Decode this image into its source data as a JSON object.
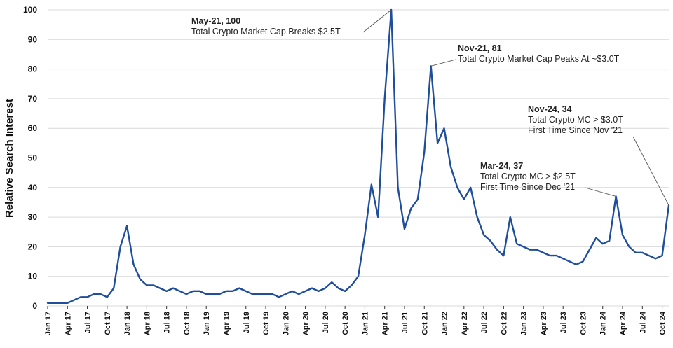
{
  "chart_data": {
    "type": "line",
    "title": "",
    "xlabel": "",
    "ylabel": "Relative Search Interest",
    "ylim": [
      0,
      100
    ],
    "yticks": [
      0,
      10,
      20,
      30,
      40,
      50,
      60,
      70,
      80,
      90,
      100
    ],
    "grid": "horizontal",
    "series_color": "#1f4e9c",
    "x_tick_labels": [
      "Jan 17",
      "Apr 17",
      "Jul 17",
      "Oct 17",
      "Jan 18",
      "Apr 18",
      "Jul 18",
      "Oct 18",
      "Jan 19",
      "Apr 19",
      "Jul 19",
      "Oct 19",
      "Jan 20",
      "Apr 20",
      "Jul 20",
      "Oct 20",
      "Jan 21",
      "Apr 21",
      "Jul 21",
      "Oct 21",
      "Jan 22",
      "Apr 22",
      "Jul 22",
      "Oct 22",
      "Jan 23",
      "Apr 23",
      "Jul 23",
      "Oct 23",
      "Jan 24",
      "Apr 24",
      "Jul 24",
      "Oct 24"
    ],
    "series": [
      {
        "x_start": "Jan 17",
        "frequency": "monthly",
        "values": [
          1,
          1,
          1,
          1,
          2,
          3,
          3,
          4,
          4,
          3,
          6,
          20,
          27,
          14,
          9,
          7,
          7,
          6,
          5,
          6,
          5,
          4,
          5,
          5,
          4,
          4,
          4,
          5,
          5,
          6,
          5,
          4,
          4,
          4,
          4,
          3,
          4,
          5,
          4,
          5,
          6,
          5,
          6,
          8,
          6,
          5,
          7,
          10,
          24,
          41,
          30,
          70,
          100,
          40,
          26,
          33,
          36,
          52,
          81,
          55,
          60,
          47,
          40,
          36,
          40,
          30,
          24,
          22,
          19,
          17,
          30,
          21,
          20,
          19,
          19,
          18,
          17,
          17,
          16,
          15,
          14,
          15,
          19,
          23,
          21,
          22,
          37,
          24,
          20,
          18,
          18,
          17,
          16,
          17,
          34
        ]
      }
    ],
    "annotations": [
      {
        "index": 52,
        "title": "May-21, 100",
        "lines": [
          "Total Crypto Market Cap Breaks $2.5T"
        ]
      },
      {
        "index": 58,
        "title": "Nov-21, 81",
        "lines": [
          "Total Crypto Market Cap Peaks At ~$3.0T"
        ]
      },
      {
        "index": 94,
        "title": "Nov-24, 34",
        "lines": [
          "Total Crypto MC > $3.0T",
          "First Time Since Nov '21"
        ]
      },
      {
        "index": 86,
        "title": "Mar-24, 37",
        "lines": [
          "Total Crypto MC > $2.5T",
          "First Time Since Dec '21"
        ]
      }
    ]
  }
}
